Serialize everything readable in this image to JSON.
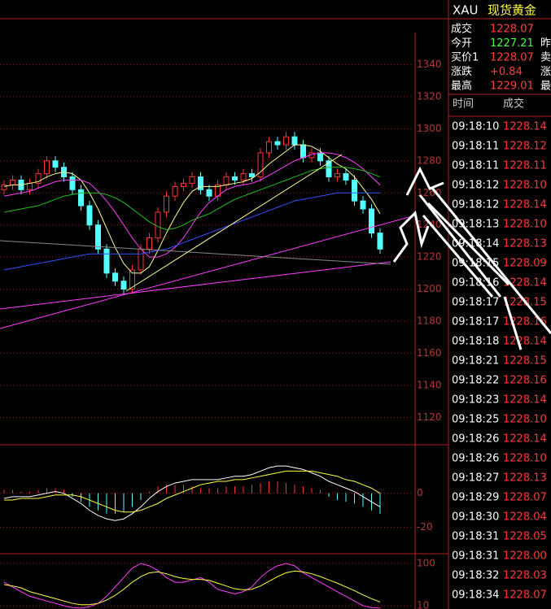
{
  "header": {
    "symbol": "XAU",
    "name": "现货黄金"
  },
  "quote": {
    "rows": [
      {
        "label": "成交",
        "value": "1228.07",
        "color": "#ff4040"
      },
      {
        "label": "今开",
        "value": "1227.21",
        "color": "#40ff40",
        "extra": "昨"
      },
      {
        "label": "买价1",
        "value": "1228.07",
        "color": "#ff4040",
        "extra": "卖"
      },
      {
        "label": "涨跌",
        "value": "+0.84",
        "color": "#ff4040",
        "extra": "涨"
      },
      {
        "label": "最高",
        "value": "1229.01",
        "color": "#ff4040",
        "extra": "最"
      }
    ]
  },
  "trades": {
    "headers": [
      "时间",
      "成交"
    ],
    "rows": [
      [
        "09:18:10",
        "1228.14"
      ],
      [
        "09:18:11",
        "1228.12"
      ],
      [
        "09:18:11",
        "1228.11"
      ],
      [
        "09:18:12",
        "1228.10"
      ],
      [
        "09:18:12",
        "1228.14"
      ],
      [
        "09:18:13",
        "1228.10"
      ],
      [
        "09:18:14",
        "1228.13"
      ],
      [
        "09:18:15",
        "1228.09"
      ],
      [
        "09:18:16",
        "1228.14"
      ],
      [
        "09:18:17",
        "1228.15"
      ],
      [
        "09:18:17",
        "1228.16"
      ],
      [
        "09:18:18",
        "1228.14"
      ],
      [
        "09:18:21",
        "1228.15"
      ],
      [
        "09:18:22",
        "1228.16"
      ],
      [
        "09:18:23",
        "1228.14"
      ],
      [
        "09:18:25",
        "1228.10"
      ],
      [
        "09:18:26",
        "1228.14"
      ],
      [
        "09:18:26",
        "1228.10"
      ],
      [
        "09:18:27",
        "1228.13"
      ],
      [
        "09:18:29",
        "1228.07"
      ],
      [
        "09:18:30",
        "1228.04"
      ],
      [
        "09:18:31",
        "1228.05"
      ],
      [
        "09:18:31",
        "1228.00"
      ],
      [
        "09:18:32",
        "1228.03"
      ],
      [
        "09:18:34",
        "1228.07"
      ]
    ]
  },
  "chart_data": [
    {
      "type": "candlestick",
      "up_color": "#ff3232",
      "down_color": "#54ffff",
      "grid": true,
      "ylim": [
        1104,
        1360
      ],
      "yticks": [
        1120,
        1140,
        1160,
        1180,
        1200,
        1220,
        1240,
        1260,
        1280,
        1300,
        1320,
        1340
      ],
      "open": [
        1262,
        1265,
        1268,
        1262,
        1266,
        1272,
        1280,
        1276,
        1270,
        1262,
        1252,
        1240,
        1225,
        1210,
        1205,
        1200,
        1212,
        1225,
        1232,
        1248,
        1258,
        1264,
        1266,
        1270,
        1262,
        1258,
        1265,
        1270,
        1268,
        1272,
        1270,
        1285,
        1292,
        1290,
        1295,
        1290,
        1282,
        1285,
        1280,
        1270,
        1272,
        1268,
        1255,
        1250,
        1235
      ],
      "high": [
        1268,
        1271,
        1271,
        1269,
        1275,
        1283,
        1283,
        1279,
        1273,
        1265,
        1255,
        1243,
        1228,
        1213,
        1208,
        1215,
        1228,
        1235,
        1251,
        1261,
        1267,
        1269,
        1273,
        1273,
        1265,
        1268,
        1273,
        1273,
        1275,
        1275,
        1288,
        1295,
        1295,
        1298,
        1298,
        1293,
        1288,
        1288,
        1283,
        1275,
        1275,
        1271,
        1258,
        1253,
        1238
      ],
      "low": [
        1259,
        1262,
        1259,
        1259,
        1263,
        1269,
        1273,
        1267,
        1259,
        1249,
        1237,
        1222,
        1207,
        1202,
        1197,
        1197,
        1209,
        1222,
        1229,
        1245,
        1255,
        1261,
        1263,
        1259,
        1255,
        1255,
        1262,
        1265,
        1265,
        1267,
        1267,
        1282,
        1287,
        1287,
        1287,
        1279,
        1279,
        1277,
        1267,
        1267,
        1265,
        1252,
        1247,
        1232,
        1222
      ],
      "close": [
        1265,
        1268,
        1262,
        1266,
        1272,
        1280,
        1276,
        1270,
        1262,
        1252,
        1240,
        1225,
        1210,
        1205,
        1200,
        1212,
        1225,
        1232,
        1248,
        1258,
        1264,
        1266,
        1270,
        1262,
        1258,
        1265,
        1270,
        1268,
        1272,
        1270,
        1285,
        1292,
        1290,
        1295,
        1290,
        1282,
        1285,
        1280,
        1270,
        1272,
        1268,
        1255,
        1250,
        1235,
        1225
      ],
      "series": [
        {
          "color": "#ffff90",
          "values": [
            1264,
            1265,
            1265,
            1266,
            1267,
            1270,
            1272,
            1273,
            1272,
            1268,
            1260,
            1250,
            1238,
            1226,
            1216,
            1210,
            1210,
            1214,
            1224,
            1235,
            1245,
            1254,
            1261,
            1264,
            1264,
            1264,
            1265,
            1266,
            1267,
            1269,
            1273,
            1278,
            1282,
            1286,
            1290,
            1290,
            1289,
            1286,
            1282,
            1278,
            1275,
            1270,
            1263,
            1256,
            1247
          ]
        },
        {
          "color": "#ff40ff",
          "values": [
            1258,
            1259,
            1260,
            1261,
            1263,
            1265,
            1267,
            1268,
            1268,
            1268,
            1266,
            1261,
            1255,
            1248,
            1240,
            1232,
            1225,
            1220,
            1220,
            1222,
            1226,
            1232,
            1240,
            1248,
            1254,
            1258,
            1262,
            1264,
            1265,
            1266,
            1268,
            1271,
            1274,
            1277,
            1280,
            1282,
            1284,
            1285,
            1285,
            1284,
            1282,
            1279,
            1275,
            1270,
            1265
          ]
        },
        {
          "color": "#20c020",
          "values": [
            1248,
            1249,
            1250,
            1251,
            1252,
            1254,
            1256,
            1258,
            1259,
            1260,
            1260,
            1260,
            1259,
            1257,
            1254,
            1250,
            1246,
            1242,
            1239,
            1237,
            1238,
            1240,
            1243,
            1245,
            1247,
            1250,
            1253,
            1256,
            1258,
            1260,
            1262,
            1264,
            1266,
            1268,
            1270,
            1272,
            1274,
            1275,
            1276,
            1276,
            1276,
            1275,
            1274,
            1272,
            1270
          ]
        },
        {
          "color": "#3050ff",
          "values": [
            1212,
            1213,
            1214,
            1215,
            1216,
            1217,
            1218,
            1219,
            1220,
            1221,
            1222,
            1222,
            1222,
            1222,
            1222,
            1222,
            1222,
            1223,
            1224,
            1225,
            1227,
            1229,
            1231,
            1233,
            1235,
            1237,
            1239,
            1241,
            1243,
            1245,
            1247,
            1249,
            1251,
            1253,
            1255,
            1256,
            1257,
            1258,
            1259,
            1260,
            1260,
            1260,
            1260,
            1260,
            1260
          ]
        }
      ]
    },
    {
      "type": "macd",
      "up_color": "#ff3232",
      "down_color": "#54ffff",
      "grid": true,
      "ylim": [
        -35,
        28
      ],
      "yticks": [
        0,
        -20
      ],
      "values": [
        2,
        2,
        1,
        1,
        2,
        3,
        3,
        2,
        -2,
        -5,
        -8,
        -10,
        -12,
        -12,
        -11,
        -8,
        -4,
        1,
        4,
        5,
        5,
        5,
        4,
        3,
        3,
        3,
        4,
        4,
        4,
        5,
        6,
        7,
        7,
        6,
        5,
        4,
        3,
        2,
        -2,
        -4,
        -5,
        -6,
        -8,
        -10,
        -12
      ],
      "series": [
        {
          "color": "#ffffff",
          "values": [
            -3,
            -2,
            -2,
            -2,
            -1,
            0,
            1,
            0,
            -3,
            -6,
            -10,
            -13,
            -15,
            -16,
            -15,
            -12,
            -8,
            -3,
            1,
            4,
            6,
            7,
            8,
            8,
            8,
            8,
            9,
            10,
            10,
            11,
            13,
            15,
            16,
            16,
            15,
            14,
            12,
            10,
            7,
            5,
            3,
            1,
            -2,
            -5,
            -8
          ]
        },
        {
          "color": "#ffff40",
          "values": [
            -4,
            -4,
            -3,
            -3,
            -3,
            -2,
            -1,
            -1,
            -1,
            -2,
            -4,
            -6,
            -8,
            -10,
            -11,
            -11,
            -10,
            -8,
            -6,
            -3,
            -1,
            1,
            3,
            5,
            6,
            7,
            7,
            8,
            8,
            9,
            10,
            11,
            12,
            13,
            13,
            13,
            13,
            12,
            11,
            10,
            8,
            7,
            5,
            3,
            0
          ]
        }
      ]
    },
    {
      "type": "kdj",
      "grid": true,
      "ylim": [
        3,
        119
      ],
      "yticks": [
        100,
        10
      ],
      "series": [
        {
          "color": "#ff40ff",
          "values": [
            60,
            50,
            40,
            30,
            25,
            20,
            15,
            10,
            6,
            5,
            8,
            15,
            30,
            50,
            70,
            90,
            100,
            95,
            85,
            70,
            60,
            60,
            65,
            70,
            60,
            45,
            40,
            35,
            40,
            50,
            70,
            85,
            95,
            100,
            95,
            80,
            70,
            60,
            50,
            40,
            30,
            20,
            10,
            6,
            5
          ]
        },
        {
          "color": "#ffff40",
          "values": [
            55,
            52,
            48,
            40,
            35,
            30,
            25,
            20,
            15,
            12,
            12,
            15,
            22,
            32,
            45,
            60,
            72,
            80,
            82,
            78,
            72,
            68,
            66,
            66,
            64,
            58,
            52,
            46,
            44,
            45,
            52,
            62,
            72,
            80,
            84,
            82,
            78,
            72,
            65,
            58,
            50,
            42,
            33,
            25,
            18
          ]
        }
      ]
    }
  ]
}
